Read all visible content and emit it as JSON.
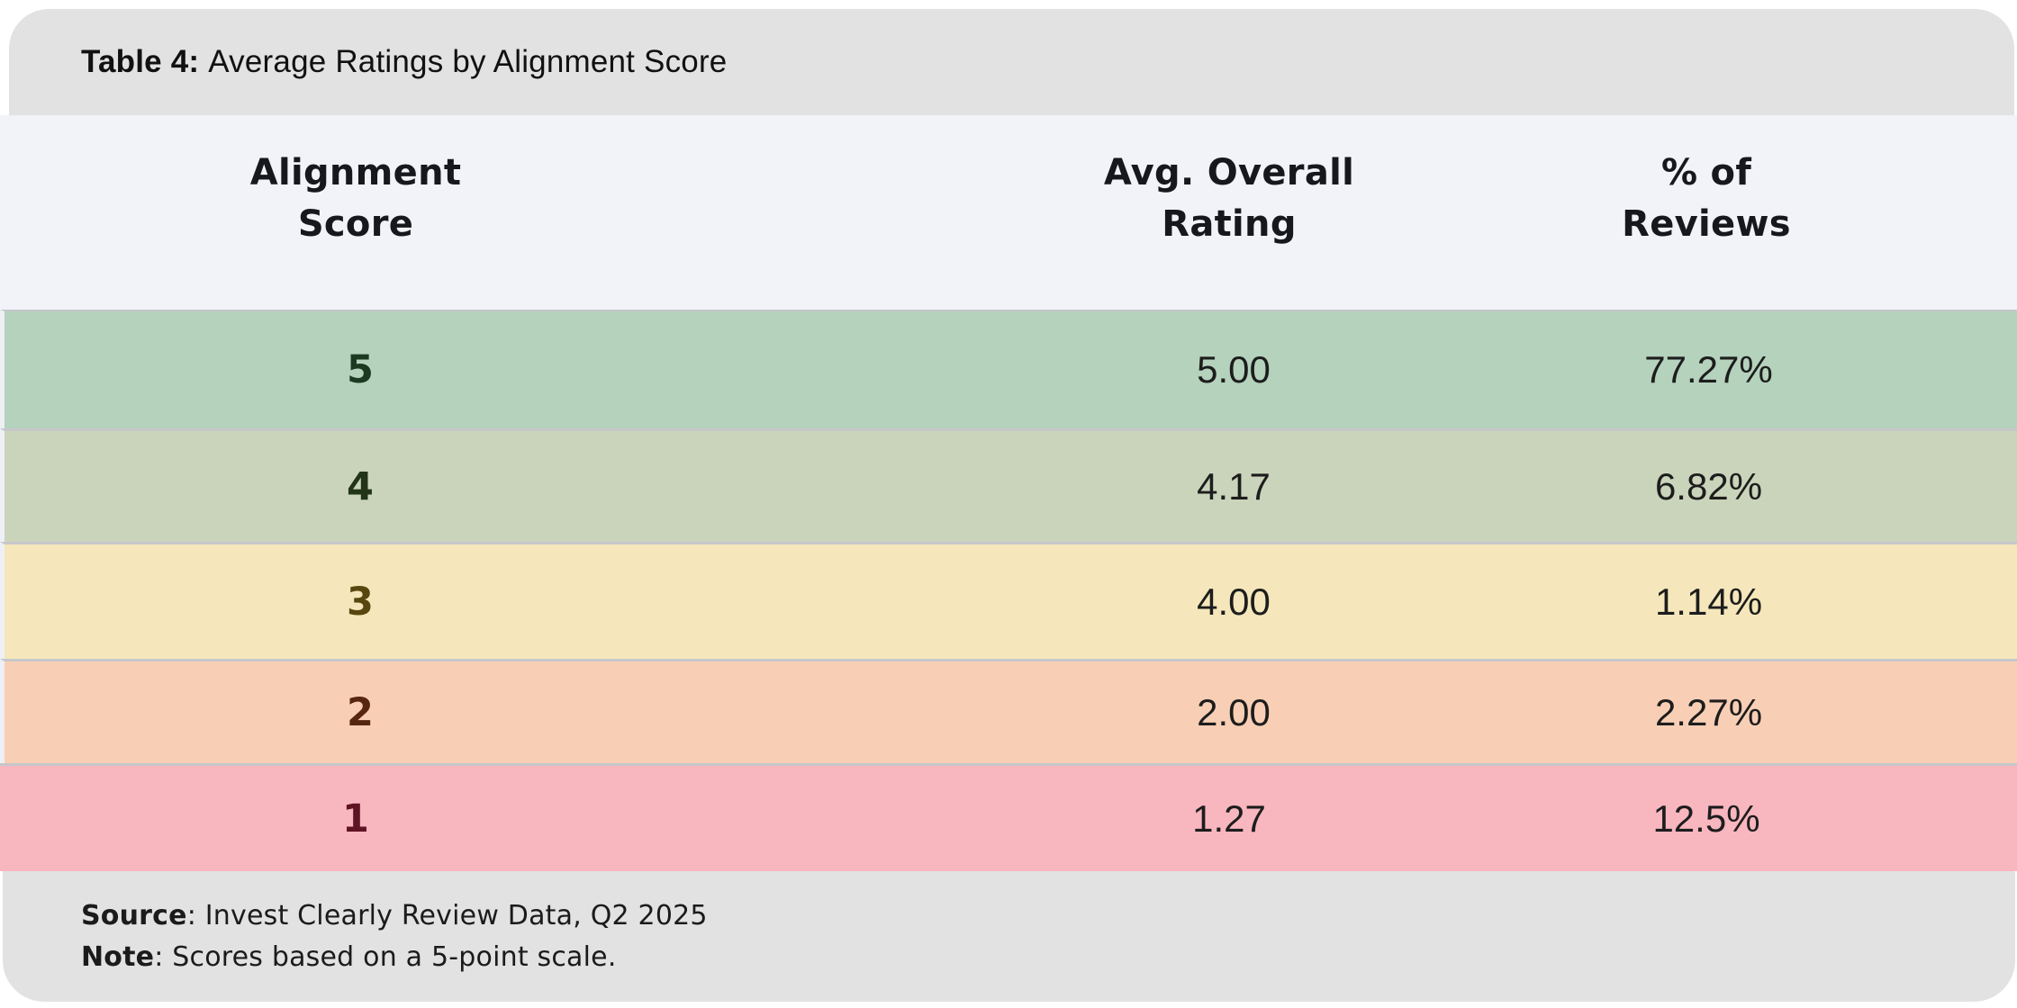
{
  "title": {
    "label": "Table 4:",
    "text": "Average Ratings by Alignment Score"
  },
  "header": {
    "col1": {
      "line1": "Alignment",
      "line2": "Score"
    },
    "col2": {
      "line1": "Avg. Overall",
      "line2": "Rating"
    },
    "col3": {
      "line1": "% of",
      "line2": "Reviews"
    }
  },
  "table": {
    "rows": [
      {
        "score": "5",
        "rating": "5.00",
        "pct": "77.27%",
        "bg": "#b4d2bc",
        "score_color": "#1c3a20"
      },
      {
        "score": "4",
        "rating": "4.17",
        "pct": "6.82%",
        "bg": "#cad4bb",
        "score_color": "#223516"
      },
      {
        "score": "3",
        "rating": "4.00",
        "pct": "1.14%",
        "bg": "#f5e7bb",
        "score_color": "#57470f"
      },
      {
        "score": "2",
        "rating": "2.00",
        "pct": "2.27%",
        "bg": "#f8cfb5",
        "score_color": "#572610"
      },
      {
        "score": "1",
        "rating": "1.27",
        "pct": "12.5%",
        "bg": "#f8b6bf",
        "score_color": "#5e1422"
      }
    ]
  },
  "footer": {
    "source_label": "Source",
    "source_text": ": Invest Clearly Review Data, Q2 2025",
    "note_label": "Note",
    "note_text": ": Scores based on a 5-point scale."
  },
  "colors": {
    "caption_bar_bg": "#e2e2e2",
    "header_bg": "#f2f3f8",
    "row_divider": "#c6c7ca",
    "footer_bg": "#e2e2e2",
    "body_text": "#1d1d1d"
  },
  "chart_data": {
    "type": "table",
    "title": "Table 4: Average Ratings by Alignment Score",
    "columns": [
      "Alignment Score",
      "Avg. Overall Rating",
      "% of Reviews"
    ],
    "rows": [
      [
        "5",
        "5.00",
        "77.27%"
      ],
      [
        "4",
        "4.17",
        "6.82%"
      ],
      [
        "3",
        "4.00",
        "1.14%"
      ],
      [
        "2",
        "2.00",
        "2.27%"
      ],
      [
        "1",
        "1.27",
        "12.5%"
      ]
    ],
    "row_color_scale": [
      "#b4d2bc",
      "#cad4bb",
      "#f5e7bb",
      "#f8cfb5",
      "#f8b6bf"
    ],
    "source": "Invest Clearly Review Data, Q2 2025",
    "note": "Scores based on a 5-point scale."
  }
}
